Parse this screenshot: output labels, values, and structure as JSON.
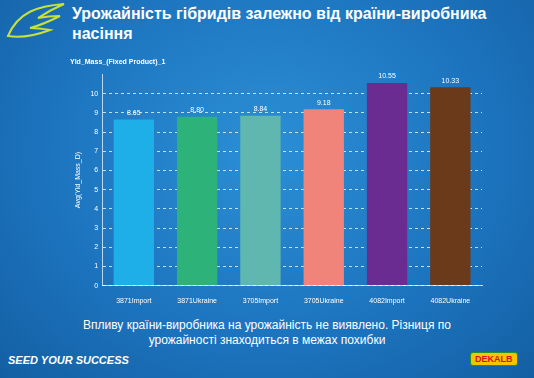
{
  "header": {
    "title": "Урожайність гібридів залежно від країни-виробника насіння",
    "slogan": "SEED YOUR SUCCESS",
    "logo": "DEKALB"
  },
  "chart_data": {
    "type": "bar",
    "title": "Yld_Mass_(Fixed Product)_1",
    "y_label": "Avg(Yld_Mass_D)",
    "categories": [
      "3871Import",
      "3871Ukraine",
      "3705Import",
      "3705Ukraine",
      "4082Import",
      "4082Ukraine"
    ],
    "values": [
      8.65,
      8.8,
      8.84,
      9.18,
      10.55,
      10.33
    ],
    "value_labels": [
      "8.65",
      "8.80",
      "8.84",
      "9.18",
      "10.55",
      "10.33"
    ],
    "colors": [
      "#1eaee8",
      "#2db37a",
      "#5fb7b0",
      "#f0837a",
      "#6b2c91",
      "#6b3a1a"
    ],
    "ylim": [
      0,
      11
    ],
    "yticks": [
      0,
      1,
      2,
      3,
      4,
      5,
      6,
      7,
      8,
      9,
      10
    ],
    "grid": true,
    "data_labels": true
  },
  "footer": {
    "note": "Впливу країни-виробника на урожайність не виявлено. Різниця по урожайності знаходиться в межах похибки"
  }
}
